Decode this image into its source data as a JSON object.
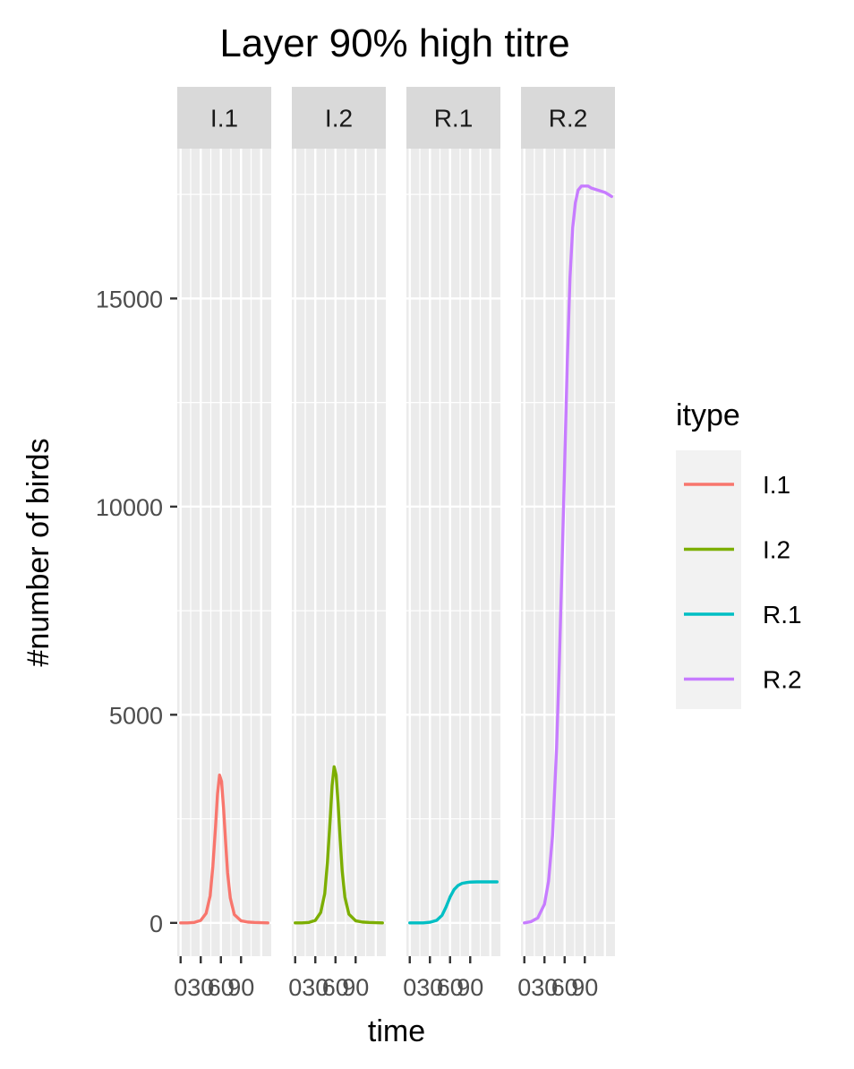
{
  "chart_data": {
    "type": "line",
    "title": "Layer 90% high titre",
    "xlabel": "time",
    "ylabel": "#number of birds",
    "facets": [
      "I.1",
      "I.2",
      "R.1",
      "R.2"
    ],
    "xlim": [
      -5,
      135
    ],
    "x_ticks": [
      0,
      30,
      60,
      90
    ],
    "x_tick_labels": [
      "0",
      "30",
      "60",
      "90"
    ],
    "ylim": [
      -800,
      18600
    ],
    "y_ticks": [
      0,
      5000,
      10000,
      15000
    ],
    "y_tick_labels": [
      "0",
      "5000",
      "10000",
      "15000"
    ],
    "grid": true,
    "legend": {
      "title": "itype",
      "position": "right",
      "entries": [
        "I.1",
        "I.2",
        "R.1",
        "R.2"
      ]
    },
    "series": [
      {
        "name": "I.1",
        "color": "#F8766D",
        "x": [
          0,
          10,
          20,
          30,
          38,
          44,
          48,
          52,
          55,
          58,
          61,
          64,
          67,
          70,
          74,
          80,
          90,
          100,
          110,
          120,
          130
        ],
        "y": [
          0,
          0,
          10,
          60,
          230,
          650,
          1350,
          2300,
          3100,
          3550,
          3400,
          2750,
          1950,
          1200,
          600,
          200,
          50,
          20,
          10,
          5,
          0
        ]
      },
      {
        "name": "I.2",
        "color": "#7CAE00",
        "x": [
          0,
          10,
          20,
          30,
          38,
          44,
          48,
          52,
          55,
          58,
          61,
          64,
          67,
          70,
          74,
          80,
          90,
          100,
          110,
          120,
          130
        ],
        "y": [
          0,
          0,
          10,
          60,
          250,
          700,
          1450,
          2450,
          3300,
          3750,
          3550,
          2850,
          2000,
          1250,
          620,
          210,
          50,
          20,
          10,
          5,
          0
        ]
      },
      {
        "name": "R.1",
        "color": "#00BFC4",
        "x": [
          0,
          10,
          20,
          30,
          40,
          48,
          54,
          60,
          66,
          72,
          78,
          85,
          90,
          100,
          110,
          120,
          130
        ],
        "y": [
          0,
          0,
          0,
          15,
          60,
          180,
          380,
          620,
          800,
          900,
          950,
          970,
          980,
          985,
          985,
          985,
          985
        ]
      },
      {
        "name": "R.2",
        "color": "#C77CFF",
        "x": [
          0,
          10,
          20,
          30,
          36,
          42,
          48,
          52,
          56,
          60,
          64,
          68,
          72,
          76,
          80,
          85,
          90,
          95,
          100,
          110,
          120,
          130
        ],
        "y": [
          0,
          30,
          120,
          450,
          1000,
          2100,
          4200,
          6200,
          8500,
          11000,
          13500,
          15500,
          16700,
          17300,
          17600,
          17700,
          17700,
          17700,
          17650,
          17600,
          17550,
          17450
        ]
      }
    ]
  }
}
